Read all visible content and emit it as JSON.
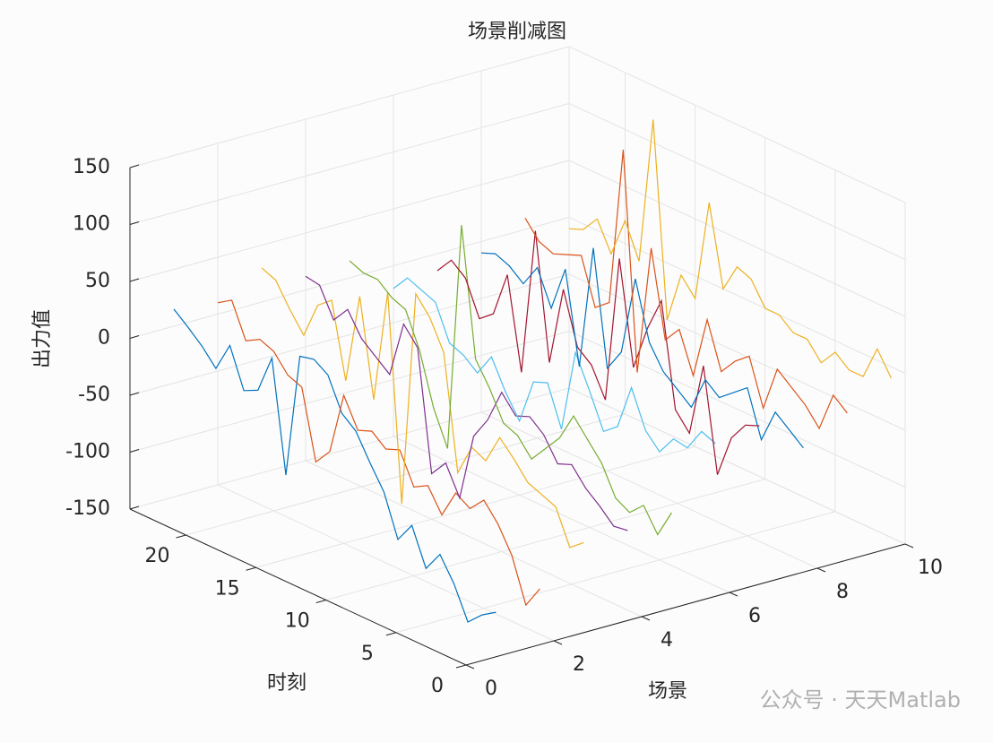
{
  "chart_data": {
    "type": "line3d",
    "title": "场景削减图",
    "xlabel": "场景",
    "ylabel": "时刻",
    "zlabel": "出力值",
    "watermark": "公众号 · 天天Matlab",
    "xlim": [
      0,
      10
    ],
    "ylim": [
      0,
      24
    ],
    "zlim": [
      -150,
      150
    ],
    "xticks": [
      0,
      2,
      4,
      6,
      8,
      10
    ],
    "yticks": [
      0,
      5,
      10,
      15,
      20
    ],
    "zticks": [
      -150,
      -100,
      -50,
      0,
      50,
      100,
      150
    ],
    "grid": true,
    "y": [
      1,
      2,
      3,
      4,
      5,
      6,
      7,
      8,
      9,
      10,
      11,
      12,
      13,
      14,
      15,
      16,
      17,
      18,
      19,
      20,
      21,
      22,
      23,
      24
    ],
    "series": [
      {
        "x": 1,
        "color": "#0072BD",
        "values": [
          -120,
          -128,
          -140,
          -112,
          -92,
          -110,
          -78,
          -96,
          -60,
          -40,
          -18,
          -8,
          20,
          28,
          25,
          -85,
          12,
          -22,
          -28,
          6,
          -20,
          -6,
          5,
          15
        ]
      },
      {
        "x": 2,
        "color": "#D95319",
        "values": [
          -110,
          -130,
          -92,
          -70,
          -55,
          -68,
          -60,
          -85,
          -65,
          -72,
          -45,
          -50,
          -40,
          -45,
          -20,
          -75,
          -90,
          -30,
          -25,
          -10,
          -5,
          -12,
          18,
          10
        ]
      },
      {
        "x": 3,
        "color": "#EDB120",
        "values": [
          -80,
          -90,
          -60,
          -55,
          -50,
          -35,
          -22,
          -48,
          -42,
          -70,
          30,
          55,
          70,
          -120,
          60,
          -40,
          45,
          -35,
          30,
          20,
          -12,
          5,
          25,
          30
        ]
      },
      {
        "x": 4,
        "color": "#7E2F8E",
        "values": [
          -80,
          -82,
          -70,
          -60,
          -45,
          -50,
          -30,
          -20,
          -25,
          -10,
          -40,
          -60,
          -120,
          -95,
          -110,
          -5,
          10,
          -40,
          -30,
          -20,
          0,
          -15,
          10,
          12
        ]
      },
      {
        "x": 5,
        "color": "#77AC30",
        "values": [
          -75,
          -100,
          -80,
          -92,
          -85,
          -60,
          -45,
          -30,
          -55,
          -70,
          -85,
          -70,
          -65,
          -40,
          -20,
          92,
          -110,
          -80,
          -35,
          -5,
          0,
          10,
          10,
          15
        ]
      },
      {
        "x": 6,
        "color": "#4DBEEE",
        "values": [
          -25,
          -20,
          -40,
          -38,
          -55,
          -42,
          -10,
          -50,
          -60,
          -30,
          -2,
          -75,
          -40,
          -45,
          -85,
          -65,
          -40,
          -60,
          -50,
          -45,
          -15,
          -10,
          -5,
          -20
        ]
      },
      {
        "x": 7,
        "color": "#A2142F",
        "values": [
          -20,
          -25,
          -42,
          -80,
          10,
          -55,
          -40,
          50,
          20,
          -20,
          70,
          -60,
          -35,
          -25,
          20,
          -50,
          60,
          -70,
          10,
          -30,
          -40,
          -10,
          0,
          -15
        ]
      },
      {
        "x": 8,
        "color": "#0072BD",
        "values": [
          -50,
          -40,
          -30,
          -60,
          -20,
          -30,
          -40,
          -30,
          -60,
          -50,
          -40,
          -20,
          30,
          -40,
          -60,
          40,
          -70,
          10,
          -30,
          0,
          -20,
          -10,
          -5,
          -10
        ]
      },
      {
        "x": 9,
        "color": "#D95319",
        "values": [
          -30,
          -20,
          -55,
          -40,
          -30,
          -20,
          -60,
          -20,
          -30,
          -45,
          -5,
          -60,
          -25,
          -40,
          35,
          -80,
          110,
          -30,
          -40,
          0,
          -5,
          -10,
          -5,
          10
        ]
      },
      {
        "x": 10,
        "color": "#EDB120",
        "values": [
          -10,
          10,
          -20,
          -20,
          -10,
          -25,
          -10,
          -10,
          0,
          0,
          20,
          25,
          0,
          70,
          -20,
          -5,
          -50,
          120,
          -10,
          20,
          -15,
          10,
          -5,
          -10
        ]
      }
    ]
  }
}
